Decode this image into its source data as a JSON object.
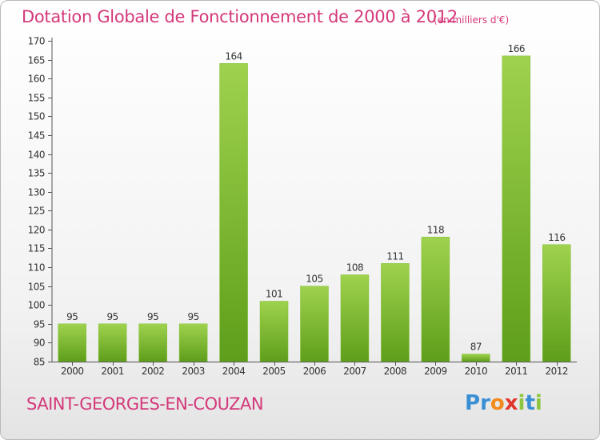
{
  "page": {
    "title": "Dotation Globale de Fonctionnement de 2000 à 2012",
    "subtitle": "(en milliers d'€)",
    "place": "SAINT-GEORGES-EN-COUZAN"
  },
  "logo": {
    "letters": [
      {
        "char": "P",
        "color": "#3a8fd4"
      },
      {
        "char": "r",
        "color": "#3a8fd4"
      },
      {
        "char": "o",
        "color": "#f28a1c"
      },
      {
        "char": "x",
        "color": "#e0352b"
      },
      {
        "char": "i",
        "color": "#8cc63f"
      },
      {
        "char": "t",
        "color": "#3a8fd4"
      },
      {
        "char": "i",
        "color": "#8cc63f"
      }
    ]
  },
  "colors": {
    "accent": "#d4387a",
    "bar_light": "#9fd24e",
    "bar_dark": "#5e9e1a",
    "axis": "#555555"
  },
  "chart_data": {
    "type": "bar",
    "title": "Dotation Globale de Fonctionnement de 2000 à 2012",
    "subtitle": "(en milliers d'€)",
    "xlabel": "",
    "ylabel": "",
    "categories": [
      "2000",
      "2001",
      "2002",
      "2003",
      "2004",
      "2005",
      "2006",
      "2007",
      "2008",
      "2009",
      "2010",
      "2011",
      "2012"
    ],
    "values": [
      95,
      95,
      95,
      95,
      164,
      101,
      105,
      108,
      111,
      118,
      87,
      166,
      116
    ],
    "ylim": [
      85,
      170
    ],
    "yticks": [
      85,
      90,
      95,
      100,
      105,
      110,
      115,
      120,
      125,
      130,
      135,
      140,
      145,
      150,
      155,
      160,
      165,
      170
    ],
    "grid": false,
    "legend": "none"
  }
}
